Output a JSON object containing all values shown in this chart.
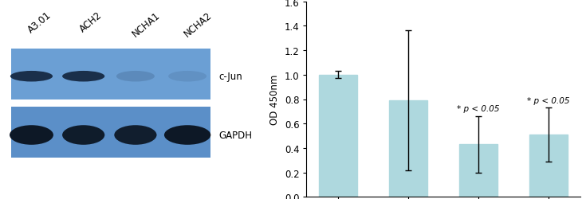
{
  "categories": [
    "A3.01",
    "ACH2",
    "NCHA1",
    "NCHA2"
  ],
  "values": [
    1.0,
    0.79,
    0.43,
    0.51
  ],
  "errors": [
    0.03,
    0.57,
    0.23,
    0.22
  ],
  "bar_color": "#aed8de",
  "ylim": [
    0,
    1.6
  ],
  "yticks": [
    0,
    0.2,
    0.4,
    0.6,
    0.8,
    1.0,
    1.2,
    1.4,
    1.6
  ],
  "ylabel": "OD 450nm",
  "significance": [
    false,
    false,
    true,
    true
  ],
  "sig_label": "* p < 0.05",
  "sig_fontsize": 7.5,
  "tick_fontsize": 8.5,
  "label_fontsize": 8.5,
  "error_capsize": 3,
  "error_linewidth": 1.0,
  "bar_width": 0.55,
  "western_blot": {
    "labels_top": [
      "A3.01",
      "ACH2",
      "NCHA1",
      "NCHA2"
    ],
    "band_labels_right": [
      "c-Jun",
      "GAPDH"
    ],
    "bg_color_top": "#6b9fd4",
    "bg_color_bot": "#5b8fc8",
    "cjun_color": "#1a2f4a",
    "gapdh_color": "#0d1826",
    "label_fontsize": 8.5,
    "sample_label_fontsize": 8.5
  }
}
